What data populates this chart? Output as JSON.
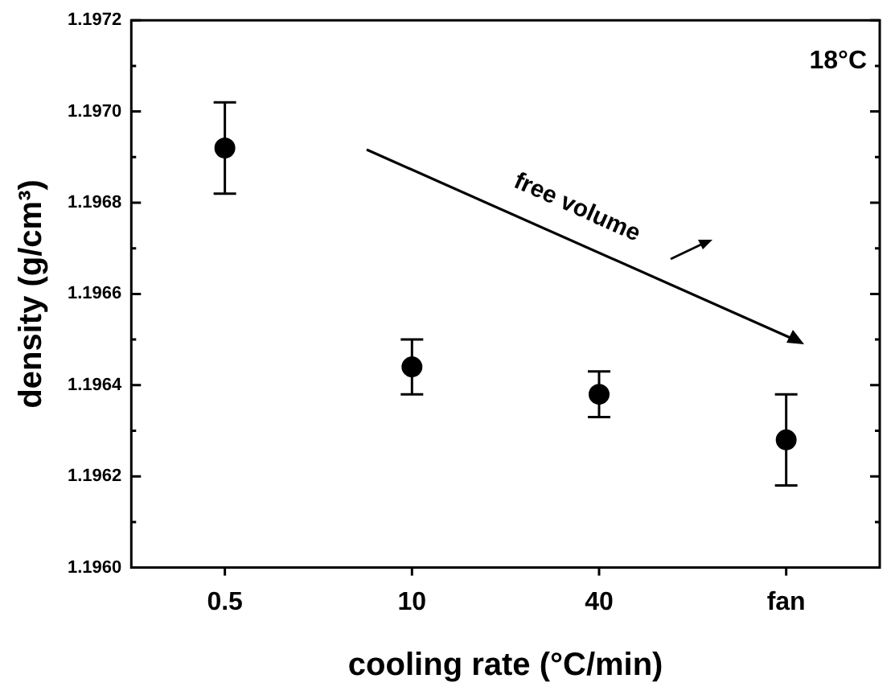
{
  "chart_data": {
    "type": "scatter",
    "xlabel": "cooling rate (°C/min)",
    "ylabel": "density (g/cm³)",
    "categories": [
      "0.5",
      "10",
      "40",
      "fan"
    ],
    "values": [
      1.19692,
      1.19644,
      1.19638,
      1.19628
    ],
    "errors": [
      0.0001,
      6e-05,
      5e-05,
      0.0001
    ],
    "color": "#000000",
    "marker": "circle",
    "ylim": [
      1.196,
      1.1972
    ],
    "yticks": [
      {
        "value": 1.196,
        "label": "1.1960"
      },
      {
        "value": 1.1961,
        "label": null
      },
      {
        "value": 1.1962,
        "label": "1.1962"
      },
      {
        "value": 1.1963,
        "label": null
      },
      {
        "value": 1.1964,
        "label": "1.1964"
      },
      {
        "value": 1.1965,
        "label": null
      },
      {
        "value": 1.1966,
        "label": "1.1966"
      },
      {
        "value": 1.1967,
        "label": null
      },
      {
        "value": 1.1968,
        "label": "1.1968"
      },
      {
        "value": 1.1969,
        "label": null
      },
      {
        "value": 1.197,
        "label": "1.1970"
      },
      {
        "value": 1.1971,
        "label": null
      },
      {
        "value": 1.1972,
        "label": "1.1972"
      }
    ],
    "annotations": [
      "18°C",
      "free volume"
    ],
    "grid": false,
    "legend": false
  }
}
